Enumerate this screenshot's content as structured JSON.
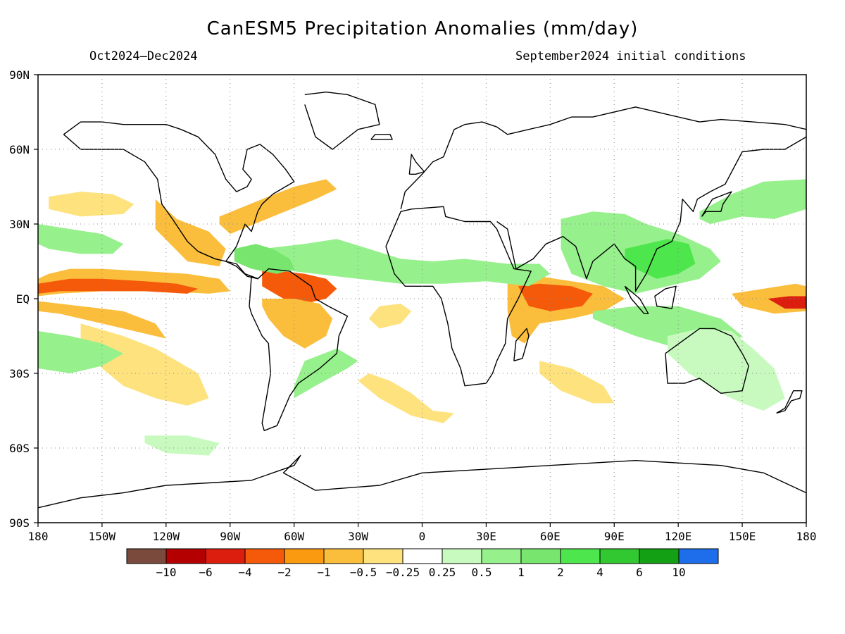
{
  "title": "CanESM5 Precipitation Anomalies (mm/day)",
  "period": "Oct2024–Dec2024",
  "initial_conditions": "September2024 initial conditions",
  "map": {
    "lon_labels": [
      "180",
      "150W",
      "120W",
      "90W",
      "60W",
      "30W",
      "0",
      "30E",
      "60E",
      "90E",
      "120E",
      "150E",
      "180"
    ],
    "lat_labels": [
      "90N",
      "60N",
      "30N",
      "EQ",
      "30S",
      "60S",
      "90S"
    ]
  },
  "colorbar": {
    "colors": [
      "#7a4b3c",
      "#b40000",
      "#dc1e0f",
      "#f55a0a",
      "#fa9a10",
      "#fabe3c",
      "#fde27e",
      "#ffffff",
      "#c8fac0",
      "#96f08c",
      "#78e66e",
      "#4de64d",
      "#32c832",
      "#14a014",
      "#1e6eeb"
    ],
    "labels": [
      "−10",
      "−6",
      "−4",
      "−2",
      "−1",
      "−0.5",
      "−0.25",
      "0.25",
      "0.5",
      "1",
      "2",
      "4",
      "6",
      "10"
    ]
  },
  "anomaly_regions": [
    {
      "level": "-1",
      "color": "#fabe3c",
      "lon": [
        -180,
        -175,
        -165,
        -150,
        -130,
        -110,
        -95,
        -90,
        -100,
        -120,
        -150,
        -170,
        -180,
        -180
      ],
      "lat": [
        8,
        10,
        12,
        12,
        11,
        10,
        8,
        3,
        2,
        3,
        3,
        2,
        1,
        8
      ]
    },
    {
      "level": "-2",
      "color": "#f55a0a",
      "lon": [
        -180,
        -165,
        -150,
        -130,
        -115,
        -105,
        -110,
        -130,
        -150,
        -170,
        -180
      ],
      "lat": [
        6,
        8,
        8,
        7,
        6,
        4,
        2,
        3,
        3,
        3,
        2
      ]
    },
    {
      "level": "-1",
      "color": "#fabe3c",
      "lon": [
        -180,
        -160,
        -140,
        -125,
        -120,
        -130,
        -150,
        -170,
        -180
      ],
      "lat": [
        -1,
        -3,
        -5,
        -10,
        -16,
        -14,
        -10,
        -6,
        -5
      ]
    },
    {
      "level": "-0.5",
      "color": "#fde27e",
      "lon": [
        -160,
        -140,
        -125,
        -115,
        -105,
        -100,
        -110,
        -125,
        -140,
        -150,
        -160
      ],
      "lat": [
        -10,
        -15,
        -20,
        -25,
        -30,
        -40,
        -43,
        -40,
        -35,
        -28,
        -18
      ]
    },
    {
      "level": "-0.5",
      "color": "#fde27e",
      "lon": [
        -175,
        -160,
        -145,
        -135,
        -140,
        -160,
        -175
      ],
      "lat": [
        41,
        43,
        42,
        38,
        34,
        33,
        36
      ]
    },
    {
      "level": "-1",
      "color": "#fabe3c",
      "lon": [
        -125,
        -115,
        -100,
        -92,
        -95,
        -110,
        -125
      ],
      "lat": [
        40,
        32,
        27,
        20,
        13,
        15,
        28
      ]
    },
    {
      "level": "-1",
      "color": "#fabe3c",
      "lon": [
        -95,
        -75,
        -60,
        -45,
        -40,
        -50,
        -70,
        -90,
        -95
      ],
      "lat": [
        33,
        40,
        45,
        48,
        44,
        40,
        33,
        26,
        30
      ]
    },
    {
      "level": "-2",
      "color": "#f55a0a",
      "lon": [
        -75,
        -65,
        -55,
        -45,
        -40,
        -45,
        -55,
        -65,
        -75
      ],
      "lat": [
        12,
        11,
        10,
        8,
        4,
        0,
        -2,
        0,
        5
      ]
    },
    {
      "level": "-1",
      "color": "#fabe3c",
      "lon": [
        -75,
        -60,
        -48,
        -42,
        -45,
        -55,
        -65,
        -72,
        -75
      ],
      "lat": [
        0,
        0,
        -2,
        -8,
        -15,
        -20,
        -15,
        -8,
        -3
      ]
    },
    {
      "level": "-0.5",
      "color": "#fde27e",
      "lon": [
        -25,
        -15,
        -5,
        5,
        15,
        10,
        -5,
        -20,
        -30,
        -25
      ],
      "lat": [
        -30,
        -33,
        -38,
        -45,
        -46,
        -50,
        -47,
        -40,
        -33,
        -30
      ]
    },
    {
      "level": "-0.5",
      "color": "#fde27e",
      "lon": [
        -20,
        -10,
        -5,
        -10,
        -20,
        -25,
        -20
      ],
      "lat": [
        -3,
        -2,
        -5,
        -10,
        -12,
        -8,
        -3
      ]
    },
    {
      "level": "-1",
      "color": "#fabe3c",
      "lon": [
        40,
        55,
        70,
        85,
        95,
        85,
        70,
        55,
        48,
        42,
        40
      ],
      "lat": [
        8,
        9,
        7,
        5,
        0,
        -5,
        -8,
        -10,
        -18,
        -15,
        -5
      ]
    },
    {
      "level": "-2",
      "color": "#f55a0a",
      "lon": [
        45,
        55,
        70,
        80,
        75,
        60,
        50,
        45
      ],
      "lat": [
        5,
        6,
        5,
        2,
        -3,
        -5,
        -3,
        5
      ]
    },
    {
      "level": "-0.5",
      "color": "#fde27e",
      "lon": [
        55,
        70,
        85,
        90,
        80,
        65,
        55
      ],
      "lat": [
        -25,
        -28,
        -35,
        -42,
        -42,
        -37,
        -30
      ]
    },
    {
      "level": "-1",
      "color": "#fabe3c",
      "lon": [
        145,
        160,
        175,
        180,
        180,
        165,
        150,
        145
      ],
      "lat": [
        2,
        4,
        6,
        5,
        -5,
        -6,
        -3,
        2
      ]
    },
    {
      "level": "-4",
      "color": "#dc1e0f",
      "lon": [
        162,
        172,
        180,
        180,
        170,
        162
      ],
      "lat": [
        0,
        1,
        1,
        -4,
        -4,
        0
      ]
    },
    {
      "level": "0.5",
      "color": "#96f08c",
      "lon": [
        -180,
        -165,
        -150,
        -140,
        -145,
        -160,
        -175,
        -180
      ],
      "lat": [
        30,
        28,
        26,
        22,
        18,
        18,
        20,
        22
      ]
    },
    {
      "level": "0.5",
      "color": "#96f08c",
      "lon": [
        -180,
        -165,
        -150,
        -140,
        -150,
        -165,
        -180
      ],
      "lat": [
        -13,
        -15,
        -18,
        -22,
        -27,
        -30,
        -28
      ]
    },
    {
      "level": "0.5",
      "color": "#96f08c",
      "lon": [
        -75,
        -55,
        -40,
        -25,
        -10,
        5,
        20,
        40,
        55,
        60,
        50,
        30,
        10,
        -10,
        -30,
        -50,
        -70,
        -75
      ],
      "lat": [
        20,
        22,
        24,
        20,
        16,
        15,
        16,
        14,
        14,
        10,
        5,
        7,
        6,
        6,
        8,
        10,
        12,
        16
      ]
    },
    {
      "level": "1",
      "color": "#78e66e",
      "lon": [
        -88,
        -78,
        -70,
        -62,
        -60,
        -68,
        -80,
        -88
      ],
      "lat": [
        20,
        22,
        20,
        16,
        12,
        10,
        12,
        15
      ]
    },
    {
      "level": "0.5",
      "color": "#96f08c",
      "lon": [
        65,
        80,
        95,
        105,
        120,
        135,
        140,
        130,
        115,
        100,
        85,
        70,
        65
      ],
      "lat": [
        32,
        35,
        34,
        30,
        26,
        20,
        15,
        8,
        5,
        2,
        5,
        10,
        20
      ]
    },
    {
      "level": "2",
      "color": "#4de64d",
      "lon": [
        95,
        105,
        115,
        125,
        128,
        120,
        110,
        100,
        95
      ],
      "lat": [
        20,
        22,
        24,
        22,
        14,
        10,
        8,
        12,
        16
      ]
    },
    {
      "level": "0.5",
      "color": "#96f08c",
      "lon": [
        80,
        100,
        120,
        140,
        150,
        140,
        120,
        100,
        85,
        80
      ],
      "lat": [
        -5,
        -3,
        -3,
        -8,
        -15,
        -22,
        -20,
        -15,
        -10,
        -8
      ]
    },
    {
      "level": "0.25",
      "color": "#c8fac0",
      "lon": [
        115,
        130,
        145,
        155,
        165,
        170,
        160,
        150,
        140,
        125,
        115
      ],
      "lat": [
        -15,
        -12,
        -13,
        -20,
        -28,
        -40,
        -45,
        -42,
        -38,
        -30,
        -22
      ]
    },
    {
      "level": "0.5",
      "color": "#96f08c",
      "lon": [
        130,
        145,
        160,
        180,
        180,
        165,
        150,
        135,
        130
      ],
      "lat": [
        35,
        42,
        47,
        48,
        36,
        32,
        33,
        30,
        32
      ]
    },
    {
      "level": "0.5",
      "color": "#96f08c",
      "lon": [
        -60,
        -50,
        -35,
        -30,
        -40,
        -55,
        -60
      ],
      "lat": [
        -40,
        -35,
        -28,
        -25,
        -20,
        -25,
        -35
      ]
    },
    {
      "level": "0.25",
      "color": "#c8fac0",
      "lon": [
        -130,
        -110,
        -95,
        -100,
        -120,
        -130
      ],
      "lat": [
        -55,
        -55,
        -58,
        -63,
        -62,
        -58
      ]
    }
  ],
  "coastlines": [
    {
      "lon": [
        -168,
        -160,
        -150,
        -140,
        -130,
        -124,
        -122,
        -117,
        -110,
        -105,
        -97,
        -92,
        -87,
        -83,
        -80,
        -77,
        -75,
        -70,
        -66,
        -60,
        -64,
        -70,
        -76,
        -82,
        -84,
        -80,
        -82,
        -87,
        -92,
        -97,
        -105,
        -113,
        -120,
        -130,
        -140,
        -150,
        -160,
        -168
      ],
      "lat": [
        66,
        60,
        60,
        60,
        55,
        48,
        38,
        32,
        23,
        19,
        16,
        15,
        21,
        30,
        27,
        35,
        38,
        42,
        44,
        47,
        52,
        58,
        62,
        60,
        52,
        48,
        45,
        43,
        48,
        58,
        65,
        68,
        70,
        70,
        70,
        71,
        71,
        66
      ]
    },
    {
      "lon": [
        -105,
        -97,
        -92,
        -87,
        -83,
        -80,
        -77,
        -82,
        -87,
        -92,
        -97,
        -105
      ],
      "lat": [
        19,
        16,
        15,
        14,
        10,
        9,
        8,
        9,
        13,
        15,
        16,
        19
      ]
    },
    {
      "lon": [
        -80,
        -77,
        -72,
        -62,
        -52,
        -50,
        -44,
        -35,
        -39,
        -40,
        -48,
        -58,
        -62,
        -65,
        -68,
        -74,
        -75,
        -73,
        -71,
        -72,
        -75,
        -80,
        -81,
        -80
      ],
      "lat": [
        9,
        8,
        12,
        11,
        5,
        0,
        -3,
        -7,
        -15,
        -22,
        -28,
        -34,
        -39,
        -45,
        -51,
        -53,
        -50,
        -40,
        -30,
        -18,
        -15,
        -6,
        -3,
        9
      ]
    },
    {
      "lon": [
        -55,
        -45,
        -35,
        -22,
        -20,
        -30,
        -42,
        -50,
        -55
      ],
      "lat": [
        82,
        83,
        82,
        78,
        70,
        68,
        60,
        65,
        78
      ]
    },
    {
      "lon": [
        -17,
        -10,
        -5,
        10,
        11,
        20,
        32,
        35,
        40,
        43,
        51,
        45,
        40,
        39,
        35,
        33,
        30,
        20,
        18,
        14,
        12,
        9,
        5,
        -2,
        -8,
        -13,
        -17
      ],
      "lat": [
        21,
        35,
        36,
        37,
        33,
        31,
        31,
        28,
        18,
        12,
        11,
        0,
        -8,
        -18,
        -25,
        -30,
        -34,
        -35,
        -28,
        -20,
        -10,
        0,
        5,
        5,
        5,
        10,
        21
      ]
    },
    {
      "lon": [
        -10,
        -8,
        0,
        5,
        10,
        15,
        20,
        28,
        35,
        40,
        50,
        60,
        70,
        80,
        100,
        120,
        130,
        140,
        155,
        170,
        180
      ],
      "lat": [
        36,
        43,
        50,
        55,
        57,
        68,
        70,
        71,
        69,
        66,
        68,
        70,
        73,
        73,
        77,
        73,
        71,
        72,
        71,
        70,
        68
      ]
    },
    {
      "lon": [
        35,
        40,
        44,
        52,
        58,
        66,
        72,
        77,
        80,
        90,
        95,
        100,
        100,
        105,
        110,
        117,
        121,
        122,
        127,
        129,
        135,
        142,
        150,
        160,
        170,
        180
      ],
      "lat": [
        31,
        28,
        12,
        16,
        22,
        25,
        21,
        8,
        15,
        22,
        16,
        13,
        3,
        10,
        20,
        23,
        31,
        40,
        35,
        40,
        43,
        46,
        59,
        60,
        60,
        65
      ]
    },
    {
      "lon": [
        114,
        122,
        130,
        137,
        145,
        150,
        153,
        150,
        140,
        135,
        130,
        123,
        115,
        114
      ],
      "lat": [
        -22,
        -17,
        -12,
        -12,
        -15,
        -22,
        -27,
        -37,
        -38,
        -35,
        -32,
        -34,
        -34,
        -22
      ]
    },
    {
      "lon": [
        43,
        47,
        50,
        49,
        44,
        43
      ],
      "lat": [
        -25,
        -24,
        -15,
        -12,
        -17,
        -25
      ]
    },
    {
      "lon": [
        166,
        170,
        174,
        178,
        177,
        173,
        170,
        166
      ],
      "lat": [
        -46,
        -44,
        -37,
        -37,
        -40,
        -41,
        -45,
        -46
      ]
    },
    {
      "lon": [
        131,
        133,
        140,
        141,
        145,
        136,
        131
      ],
      "lat": [
        33,
        35,
        35,
        38,
        43,
        40,
        33
      ]
    },
    {
      "lon": [
        95,
        102,
        106,
        104,
        98,
        95
      ],
      "lat": [
        5,
        0,
        -6,
        -6,
        0,
        5
      ]
    },
    {
      "lon": [
        109,
        114,
        119,
        117,
        110,
        109
      ],
      "lat": [
        1,
        4,
        5,
        -4,
        -3,
        1
      ]
    },
    {
      "lon": [
        -6,
        -3,
        1,
        -3,
        -5,
        -6
      ],
      "lat": [
        50,
        50,
        51,
        55,
        58,
        50
      ]
    },
    {
      "lon": [
        -24,
        -14,
        -15,
        -22,
        -24
      ],
      "lat": [
        64,
        64,
        66,
        66,
        64
      ]
    },
    {
      "lon": [
        -180,
        -160,
        -140,
        -120,
        -100,
        -80,
        -60,
        -57,
        -65,
        -50,
        -20,
        0,
        20,
        40,
        60,
        80,
        100,
        120,
        140,
        160,
        170,
        180
      ],
      "lat": [
        -84,
        -80,
        -78,
        -75,
        -74,
        -73,
        -67,
        -63,
        -70,
        -77,
        -75,
        -70,
        -69,
        -68,
        -67,
        -66,
        -65,
        -66,
        -67,
        -70,
        -74,
        -78
      ]
    }
  ]
}
